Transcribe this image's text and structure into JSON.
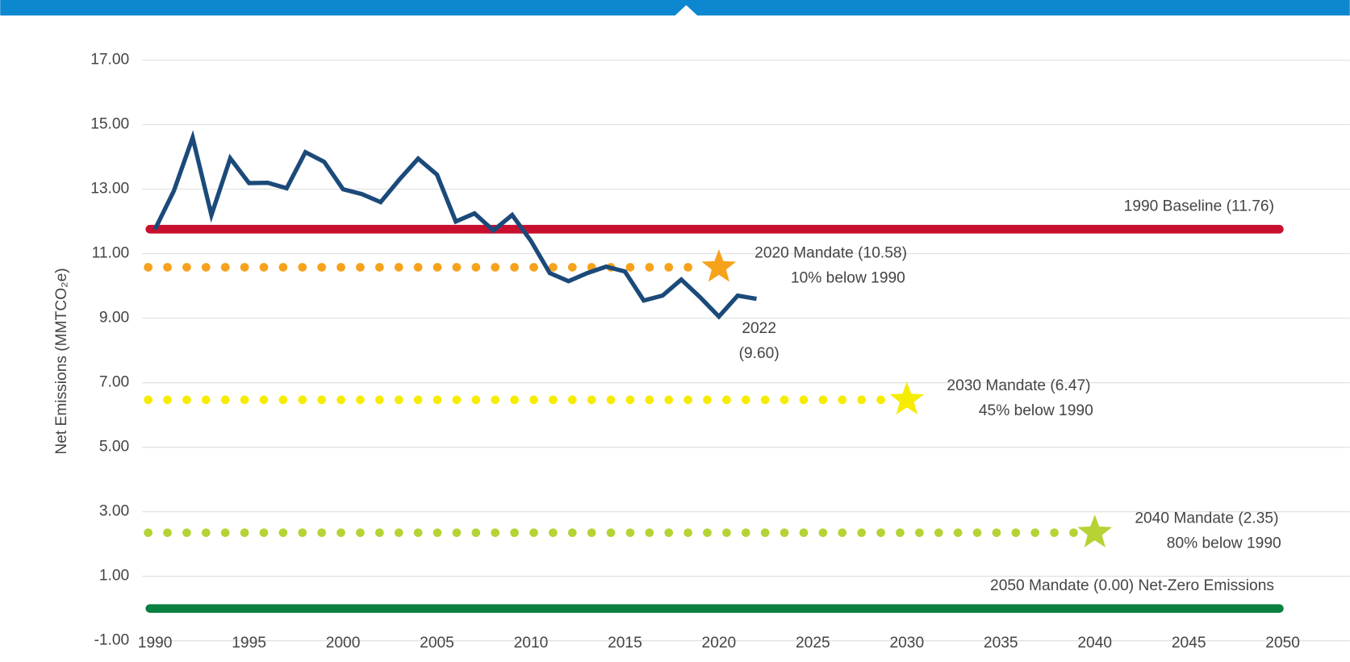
{
  "chart_data": {
    "type": "line",
    "ylabel": "Net Emissions (MMTCO₂e)",
    "xlim": [
      1989.5,
      2050.5
    ],
    "ylim": [
      -1,
      17.25
    ],
    "xticks": [
      1990,
      1995,
      2000,
      2005,
      2010,
      2015,
      2020,
      2025,
      2030,
      2035,
      2040,
      2045,
      2050
    ],
    "yticks": [
      {
        "value": -1,
        "label": "-1.00"
      },
      {
        "value": 1,
        "label": "1.00"
      },
      {
        "value": 3,
        "label": "3.00"
      },
      {
        "value": 5,
        "label": "5.00"
      },
      {
        "value": 7,
        "label": "7.00"
      },
      {
        "value": 9,
        "label": "9.00"
      },
      {
        "value": 11,
        "label": "11.00"
      },
      {
        "value": 13,
        "label": "13.00"
      },
      {
        "value": 15,
        "label": "15.00"
      },
      {
        "value": 17,
        "label": "17.00"
      }
    ],
    "grid": true,
    "series": [
      {
        "color": "#1b4a7a",
        "x": [
          1990,
          1991,
          1992,
          1993,
          1994,
          1995,
          1996,
          1997,
          1998,
          1999,
          2000,
          2001,
          2002,
          2003,
          2004,
          2005,
          2006,
          2007,
          2008,
          2009,
          2010,
          2011,
          2012,
          2013,
          2014,
          2015,
          2016,
          2017,
          2018,
          2019,
          2020,
          2021,
          2022
        ],
        "values": [
          11.76,
          12.95,
          14.6,
          12.2,
          13.96,
          13.19,
          13.2,
          13.03,
          14.15,
          13.85,
          13.0,
          12.85,
          12.6,
          13.3,
          13.95,
          13.45,
          12.0,
          12.25,
          11.72,
          12.2,
          11.4,
          10.4,
          10.15,
          10.4,
          10.6,
          10.45,
          9.55,
          9.7,
          10.2,
          9.65,
          9.05,
          9.7,
          9.6
        ]
      }
    ],
    "end_label": [
      "2022",
      "(9.60)"
    ],
    "targets": [
      {
        "label": "1990 Baseline (11.76)",
        "value": 11.76,
        "color": "#c8102e",
        "style": "solid",
        "x": [
          1990,
          2050
        ]
      },
      {
        "label": "2020 Mandate (10.58)",
        "sublabel": "10% below 1990",
        "value": 10.58,
        "color": "#f7a21b",
        "style": "dotted",
        "x": [
          1990,
          2020
        ]
      },
      {
        "label": "2030 Mandate (6.47)",
        "sublabel": "45% below 1990",
        "value": 6.47,
        "color": "#f5ec00",
        "style": "dotted",
        "x": [
          1990,
          2030
        ]
      },
      {
        "label": "2040 Mandate (2.35)",
        "sublabel": "80% below 1990",
        "value": 2.35,
        "color": "#b5d334",
        "style": "dotted",
        "x": [
          1990,
          2040
        ]
      },
      {
        "label": "2050 Mandate (0.00) Net-Zero Emissions",
        "value": 0,
        "color": "#0a8040",
        "style": "solid",
        "x": [
          1990,
          2050
        ]
      }
    ]
  }
}
